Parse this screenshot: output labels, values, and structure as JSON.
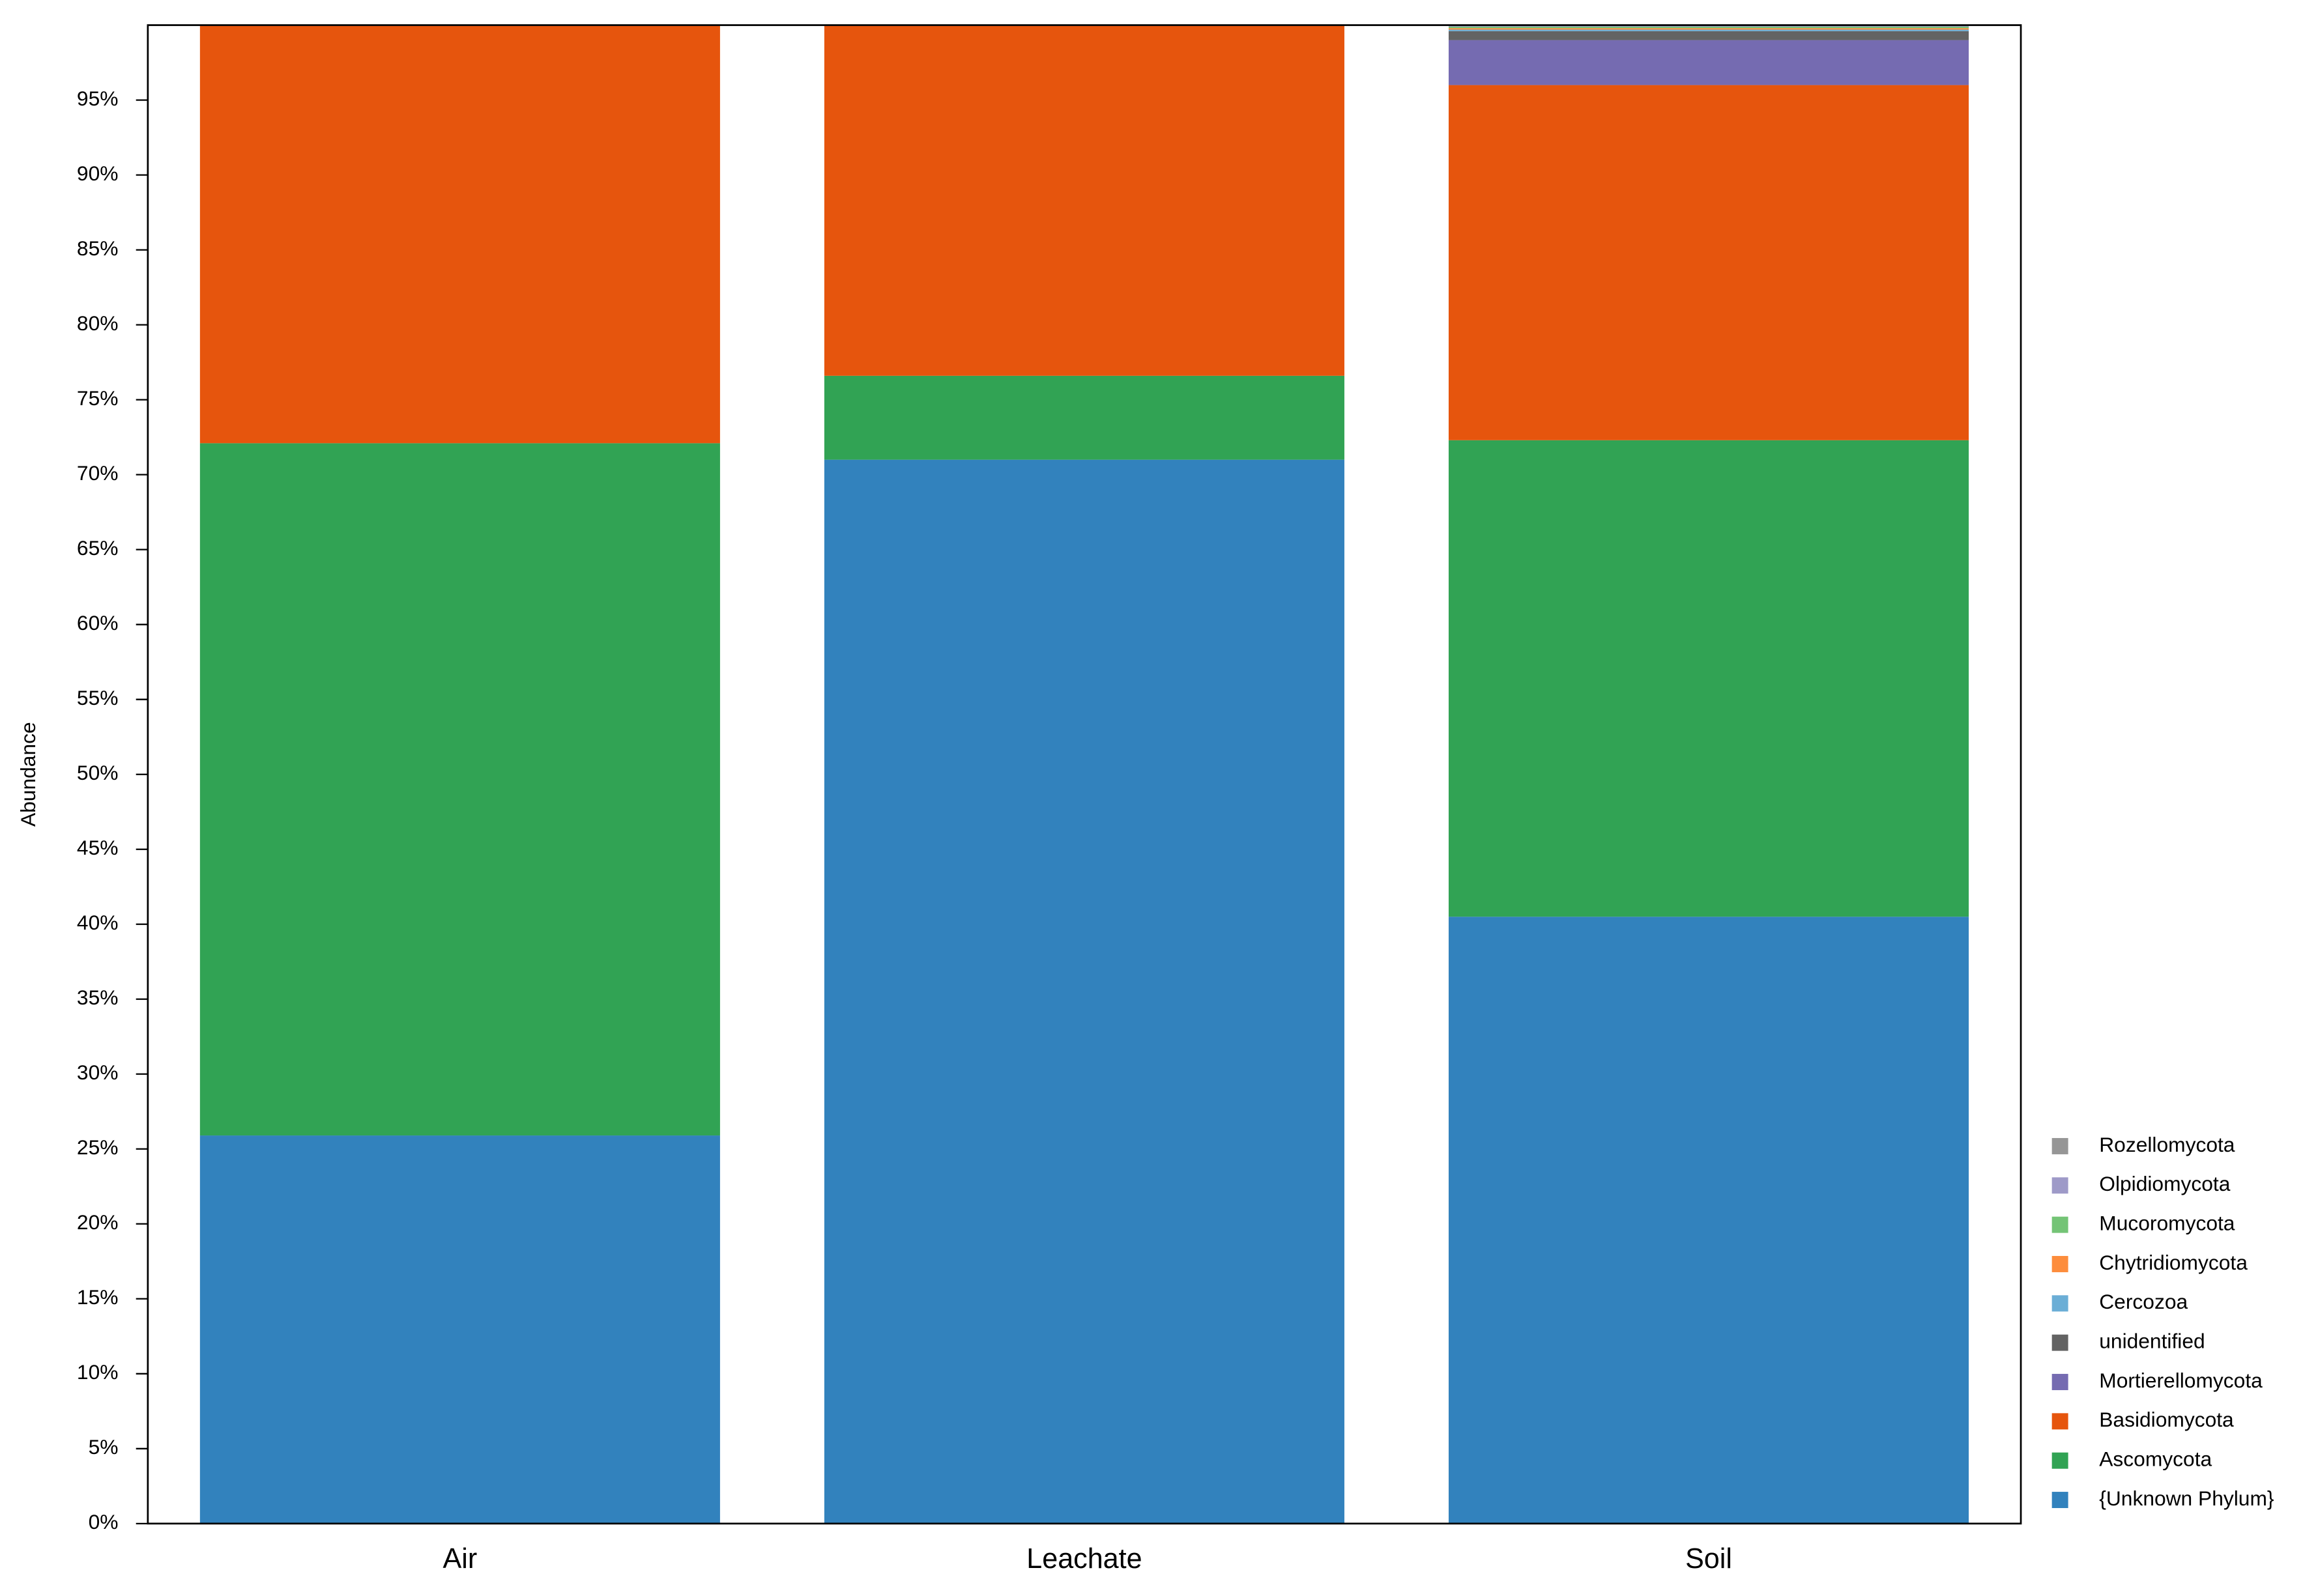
{
  "chart_data": {
    "type": "stacked_bar",
    "categories": [
      "Air",
      "Leachate",
      "Soil"
    ],
    "y_label": "Abundance",
    "ylim": [
      0,
      100
    ],
    "yticks": [
      {
        "value": 0,
        "label": "0%"
      },
      {
        "value": 5,
        "label": "5%"
      },
      {
        "value": 10,
        "label": "10%"
      },
      {
        "value": 15,
        "label": "15%"
      },
      {
        "value": 20,
        "label": "20%"
      },
      {
        "value": 25,
        "label": "25%"
      },
      {
        "value": 30,
        "label": "30%"
      },
      {
        "value": 35,
        "label": "35%"
      },
      {
        "value": 40,
        "label": "40%"
      },
      {
        "value": 45,
        "label": "45%"
      },
      {
        "value": 50,
        "label": "50%"
      },
      {
        "value": 55,
        "label": "55%"
      },
      {
        "value": 60,
        "label": "60%"
      },
      {
        "value": 65,
        "label": "65%"
      },
      {
        "value": 70,
        "label": "70%"
      },
      {
        "value": 75,
        "label": "75%"
      },
      {
        "value": 80,
        "label": "80%"
      },
      {
        "value": 85,
        "label": "85%"
      },
      {
        "value": 90,
        "label": "90%"
      },
      {
        "value": 95,
        "label": "95%"
      }
    ],
    "legend": "bottom-right",
    "series": [
      {
        "name": "{Unknown Phylum}",
        "color": "#3282bd",
        "values": [
          25.9,
          71.0,
          40.5
        ]
      },
      {
        "name": "Ascomycota",
        "color": "#31a354",
        "values": [
          46.2,
          5.6,
          31.8
        ]
      },
      {
        "name": "Basidiomycota",
        "color": "#e6550d",
        "values": [
          27.9,
          23.4,
          23.7
        ]
      },
      {
        "name": "Mortierellomycota",
        "color": "#756bb1",
        "values": [
          0,
          0,
          3.0
        ]
      },
      {
        "name": "unidentified",
        "color": "#636363",
        "values": [
          0,
          0,
          0.6
        ]
      },
      {
        "name": "Cercozoa",
        "color": "#6baed6",
        "values": [
          0,
          0,
          0.1
        ]
      },
      {
        "name": "Chytridiomycota",
        "color": "#fd8d3c",
        "values": [
          0,
          0,
          0.1
        ]
      },
      {
        "name": "Mucoromycota",
        "color": "#74c476",
        "values": [
          0,
          0,
          0.1
        ]
      },
      {
        "name": "Olpidiomycota",
        "color": "#9e9ac8",
        "values": [
          0,
          0,
          0.05
        ]
      },
      {
        "name": "Rozellomycota",
        "color": "#969696",
        "values": [
          0,
          0,
          0.05
        ]
      }
    ]
  }
}
